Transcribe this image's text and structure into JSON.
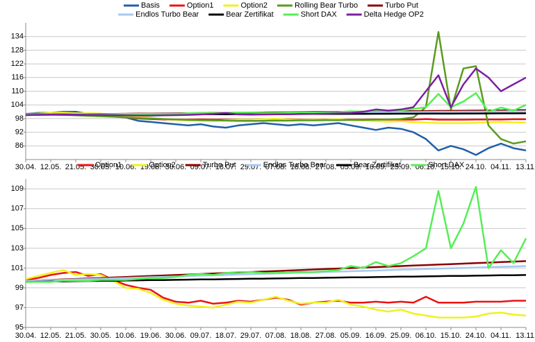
{
  "chart_data": [
    {
      "type": "line",
      "categories": [
        "30.04.",
        null,
        "12.05.",
        null,
        "21.05.",
        null,
        "30.05.",
        null,
        "10.06.",
        null,
        "19.06.",
        null,
        "30.06.",
        null,
        "09.07.",
        null,
        "18.07.",
        null,
        "29.07.",
        null,
        "07.08.",
        null,
        "18.08.",
        null,
        "27.08.",
        null,
        "05.09.",
        null,
        "16.09.",
        null,
        "25.09.",
        null,
        "06.10.",
        null,
        "15.10.",
        null,
        "24.10.",
        null,
        "04.11.",
        null,
        "13.11."
      ],
      "ylim": [
        80,
        140
      ],
      "yticks": [
        86,
        92,
        98,
        104,
        110,
        116,
        122,
        128,
        134
      ],
      "grid": true,
      "series": [
        {
          "name": "Basis",
          "color": "#1f5fa8",
          "values": [
            100,
            100.5,
            100.5,
            101,
            101,
            100,
            99.5,
            99,
            98.5,
            97,
            96.5,
            96,
            95.5,
            95,
            95.5,
            94.5,
            94,
            95,
            95.5,
            96,
            95.5,
            95,
            95.5,
            95,
            95.5,
            96,
            95,
            94,
            93,
            94,
            93.5,
            92,
            89,
            84,
            86,
            84.5,
            82,
            85,
            87,
            85,
            84
          ]
        },
        {
          "name": "Option1",
          "color": "#ee1111",
          "values": [
            100,
            100,
            100,
            100,
            100,
            100,
            99.5,
            99,
            98.5,
            98,
            97.8,
            97.6,
            97.5,
            97.5,
            97.6,
            97.5,
            97.5,
            97.6,
            97.6,
            97.7,
            97.8,
            97.7,
            97.5,
            97.5,
            97.6,
            97.6,
            97.5,
            97.5,
            97.6,
            97.5,
            97.6,
            97.5,
            97.8,
            97.5,
            97.5,
            97.5,
            97.6,
            97.6,
            97.6,
            97.7,
            97.7
          ]
        },
        {
          "name": "Option2",
          "color": "#f0f020",
          "values": [
            100,
            100.2,
            100.5,
            100.6,
            100.3,
            100.3,
            100.2,
            99.6,
            99,
            98.8,
            98.4,
            97.8,
            97.4,
            97.2,
            97.1,
            97,
            97.3,
            97.5,
            97.5,
            97.7,
            97.9,
            97.6,
            97.4,
            97.5,
            97.5,
            97.7,
            97.3,
            97.1,
            96.8,
            96.6,
            96.8,
            96.4,
            96.2,
            96,
            96,
            96,
            96.1,
            96.4,
            96.5,
            96.3,
            96.2
          ]
        },
        {
          "name": "Rolling Bear Turbo",
          "color": "#5a9a1e",
          "values": [
            100,
            100,
            99.8,
            99.6,
            99.4,
            99.2,
            99,
            98.8,
            98.5,
            98.2,
            98,
            97.8,
            97.6,
            97.4,
            97.3,
            97.2,
            97.1,
            97,
            97,
            97,
            97.1,
            97.1,
            97.2,
            97.2,
            97.3,
            97.3,
            97.4,
            97.4,
            97.5,
            97.6,
            97.8,
            98.5,
            103,
            136,
            102,
            120,
            121,
            95,
            89,
            87,
            88
          ]
        },
        {
          "name": "Turbo Put",
          "color": "#8b0000",
          "values": [
            99.7,
            99.75,
            99.8,
            99.85,
            99.9,
            99.95,
            100,
            100.05,
            100.1,
            100.15,
            100.2,
            100.25,
            100.3,
            100.35,
            100.4,
            100.45,
            100.5,
            100.55,
            100.6,
            100.65,
            100.7,
            100.75,
            100.8,
            100.85,
            100.9,
            100.95,
            101,
            101.05,
            101.1,
            101.15,
            101.2,
            101.25,
            101.3,
            101.35,
            101.4,
            101.45,
            101.5,
            101.55,
            101.6,
            101.65,
            101.7
          ]
        },
        {
          "name": "Endlos Turbo Bear",
          "color": "#a6caf0",
          "values": [
            99.7,
            99.74,
            99.78,
            99.81,
            99.85,
            99.89,
            99.93,
            99.96,
            100,
            100.04,
            100.08,
            100.11,
            100.15,
            100.19,
            100.23,
            100.26,
            100.3,
            100.34,
            100.38,
            100.41,
            100.45,
            100.49,
            100.53,
            100.56,
            100.6,
            100.64,
            100.68,
            100.71,
            100.75,
            100.79,
            100.83,
            100.86,
            100.9,
            100.94,
            100.98,
            101.01,
            101.05,
            101.09,
            101.13,
            101.16,
            101.2
          ]
        },
        {
          "name": "Bear Zertifikat",
          "color": "#000000",
          "values": [
            99.6,
            99.62,
            99.64,
            99.65,
            99.67,
            99.69,
            99.71,
            99.72,
            99.74,
            99.76,
            99.78,
            99.79,
            99.81,
            99.83,
            99.85,
            99.86,
            99.88,
            99.9,
            99.92,
            99.93,
            99.95,
            99.97,
            99.99,
            100,
            100.02,
            100.04,
            100.06,
            100.07,
            100.09,
            100.11,
            100.13,
            100.14,
            100.16,
            100.18,
            100.2,
            100.21,
            100.23,
            100.25,
            100.27,
            100.28,
            100.3
          ]
        },
        {
          "name": "Short DAX",
          "color": "#55ee55",
          "values": [
            99.6,
            99.6,
            99.6,
            99.7,
            99.7,
            99.7,
            99.8,
            99.8,
            99.8,
            99.9,
            100,
            100,
            100.1,
            100.3,
            100.4,
            100.3,
            100.5,
            100.6,
            100.6,
            100.5,
            100.5,
            100.6,
            100.6,
            100.6,
            100.7,
            100.8,
            101.2,
            101,
            101.6,
            101.2,
            101.5,
            102.2,
            103,
            108.8,
            103,
            105.5,
            109.2,
            101,
            102.8,
            101.5,
            104
          ]
        },
        {
          "name": "Delta Hedge OP2",
          "color": "#7b1fa2",
          "values": [
            99.5,
            99.6,
            99.7,
            99.8,
            99.7,
            99.6,
            99.6,
            99.5,
            99.4,
            99.3,
            99.3,
            99.4,
            99.5,
            99.6,
            99.8,
            100,
            100.5,
            99.8,
            99.7,
            99.8,
            99.9,
            99.9,
            100,
            100,
            100.2,
            100.3,
            100.5,
            101,
            102,
            101.5,
            102,
            103,
            110,
            117,
            103,
            113,
            120,
            116,
            110,
            113,
            116
          ]
        }
      ]
    },
    {
      "type": "line",
      "categories": [
        "30.04.",
        null,
        "12.05.",
        null,
        "21.05.",
        null,
        "30.05.",
        null,
        "10.06.",
        null,
        "19.06.",
        null,
        "30.06.",
        null,
        "09.07.",
        null,
        "18.07.",
        null,
        "29.07.",
        null,
        "07.08.",
        null,
        "18.08.",
        null,
        "27.08.",
        null,
        "05.09.",
        null,
        "16.09.",
        null,
        "25.09.",
        null,
        "06.10.",
        null,
        "15.10.",
        null,
        "24.10.",
        null,
        "04.11.",
        null,
        "13.11."
      ],
      "ylim": [
        95,
        110
      ],
      "yticks": [
        95,
        97,
        99,
        101,
        103,
        105,
        107,
        109
      ],
      "grid": true,
      "series": [
        {
          "name": "Option1",
          "color": "#ee1111",
          "values": [
            99.8,
            100,
            100.3,
            100.5,
            100.6,
            100.2,
            100.4,
            99.8,
            99.3,
            99,
            98.8,
            98,
            97.6,
            97.5,
            97.7,
            97.4,
            97.5,
            97.7,
            97.6,
            97.8,
            98,
            97.8,
            97.3,
            97.5,
            97.6,
            97.7,
            97.5,
            97.5,
            97.6,
            97.5,
            97.6,
            97.5,
            98.1,
            97.5,
            97.5,
            97.5,
            97.6,
            97.6,
            97.6,
            97.7,
            97.7
          ]
        },
        {
          "name": "Option2",
          "color": "#f0f020",
          "values": [
            99.9,
            100.2,
            100.5,
            100.8,
            100.3,
            100.4,
            100.3,
            99.7,
            99,
            98.9,
            98.5,
            97.8,
            97.4,
            97.2,
            97.1,
            97,
            97.3,
            97.6,
            97.5,
            97.8,
            98.1,
            97.7,
            97.4,
            97.5,
            97.5,
            97.8,
            97.3,
            97.1,
            96.8,
            96.6,
            96.8,
            96.4,
            96.2,
            96,
            96,
            96,
            96.1,
            96.4,
            96.5,
            96.3,
            96.2
          ]
        },
        {
          "name": "Turbo Put",
          "color": "#8b0000",
          "values": [
            99.7,
            99.75,
            99.8,
            99.85,
            99.9,
            99.95,
            100,
            100.05,
            100.1,
            100.15,
            100.2,
            100.25,
            100.3,
            100.35,
            100.4,
            100.45,
            100.5,
            100.55,
            100.6,
            100.65,
            100.7,
            100.75,
            100.8,
            100.85,
            100.9,
            100.95,
            101,
            101.05,
            101.1,
            101.15,
            101.2,
            101.25,
            101.3,
            101.35,
            101.4,
            101.45,
            101.5,
            101.55,
            101.6,
            101.65,
            101.7
          ]
        },
        {
          "name": "Endlos Turbo Bear",
          "color": "#a6caf0",
          "values": [
            99.7,
            99.74,
            99.78,
            99.81,
            99.85,
            99.89,
            99.93,
            99.96,
            100,
            100.04,
            100.08,
            100.11,
            100.15,
            100.19,
            100.23,
            100.26,
            100.3,
            100.34,
            100.38,
            100.41,
            100.45,
            100.49,
            100.53,
            100.56,
            100.6,
            100.64,
            100.68,
            100.71,
            100.75,
            100.79,
            100.83,
            100.86,
            100.9,
            100.94,
            100.98,
            101.01,
            101.05,
            101.09,
            101.13,
            101.16,
            101.2
          ]
        },
        {
          "name": "Bear Zertifikat",
          "color": "#000000",
          "values": [
            99.6,
            99.62,
            99.64,
            99.65,
            99.67,
            99.69,
            99.71,
            99.72,
            99.74,
            99.76,
            99.78,
            99.79,
            99.81,
            99.83,
            99.85,
            99.86,
            99.88,
            99.9,
            99.92,
            99.93,
            99.95,
            99.97,
            99.99,
            100,
            100.02,
            100.04,
            100.06,
            100.07,
            100.09,
            100.11,
            100.13,
            100.14,
            100.16,
            100.18,
            100.2,
            100.21,
            100.23,
            100.25,
            100.27,
            100.28,
            100.3
          ]
        },
        {
          "name": "Short DAX",
          "color": "#55ee55",
          "values": [
            99.6,
            99.6,
            99.6,
            99.7,
            99.7,
            99.7,
            99.8,
            99.8,
            99.8,
            99.9,
            100,
            100,
            100.1,
            100.3,
            100.4,
            100.3,
            100.5,
            100.6,
            100.6,
            100.5,
            100.5,
            100.6,
            100.6,
            100.6,
            100.7,
            100.8,
            101.2,
            101,
            101.6,
            101.2,
            101.5,
            102.2,
            103,
            108.8,
            103,
            105.5,
            109.2,
            101,
            102.8,
            101.5,
            104
          ]
        }
      ]
    }
  ]
}
